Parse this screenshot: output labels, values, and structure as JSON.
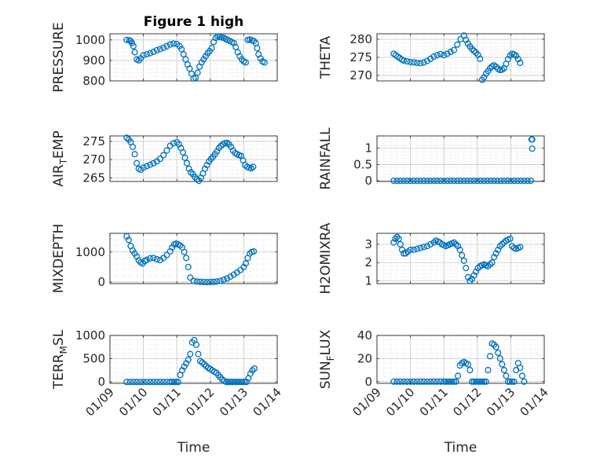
{
  "figure_title": "Figure 1 high",
  "x_axis_label": "Time",
  "marker_color": "#0072BD",
  "chart_data": [
    {
      "type": "scatter",
      "ylabel": "PRESSURE",
      "title": "Figure 1 high",
      "xlim": [
        0,
        5
      ],
      "xticks": [],
      "ylim": [
        800,
        1030
      ],
      "yticks": [
        800,
        900,
        1000
      ],
      "x": [
        0.5,
        0.58,
        0.62,
        0.66,
        0.7,
        0.74,
        0.8,
        0.86,
        0.92,
        1.0,
        1.1,
        1.2,
        1.3,
        1.4,
        1.5,
        1.6,
        1.7,
        1.8,
        1.9,
        2.0,
        2.08,
        2.14,
        2.2,
        2.26,
        2.32,
        2.38,
        2.44,
        2.5,
        2.56,
        2.62,
        2.68,
        2.74,
        2.8,
        2.86,
        2.92,
        2.98,
        3.04,
        3.1,
        3.16,
        3.22,
        3.28,
        3.34,
        3.4,
        3.46,
        3.52,
        3.58,
        3.64,
        3.7,
        3.76,
        3.82,
        3.88,
        3.94,
        4.0,
        4.06,
        4.12,
        4.18,
        4.24,
        4.3,
        4.36,
        4.4,
        4.44,
        4.5,
        4.56,
        4.62
      ],
      "y": [
        1000,
        998,
        995,
        985,
        970,
        940,
        905,
        900,
        910,
        925,
        930,
        935,
        942,
        950,
        955,
        962,
        970,
        978,
        982,
        980,
        970,
        955,
        930,
        905,
        880,
        860,
        835,
        812,
        815,
        840,
        870,
        890,
        905,
        920,
        935,
        945,
        960,
        990,
        1010,
        1018,
        1015,
        1012,
        1010,
        1005,
        1000,
        995,
        990,
        985,
        965,
        940,
        920,
        905,
        895,
        890,
        1000,
        1002,
        998,
        995,
        985,
        960,
        930,
        910,
        895,
        890
      ]
    },
    {
      "type": "scatter",
      "ylabel": "THETA",
      "title": "",
      "xlim": [
        0,
        5
      ],
      "xticks": [],
      "ylim": [
        268.5,
        281.5
      ],
      "yticks": [
        270,
        275,
        280
      ],
      "x": [
        0.5,
        0.56,
        0.62,
        0.68,
        0.74,
        0.8,
        0.9,
        1.0,
        1.1,
        1.2,
        1.3,
        1.4,
        1.5,
        1.6,
        1.7,
        1.8,
        1.9,
        2.0,
        2.1,
        2.2,
        2.3,
        2.4,
        2.5,
        2.6,
        2.66,
        2.72,
        2.78,
        2.84,
        2.9,
        2.96,
        3.02,
        3.08,
        3.14,
        3.2,
        3.26,
        3.32,
        3.38,
        3.44,
        3.5,
        3.56,
        3.62,
        3.68,
        3.74,
        3.8,
        3.86,
        3.92,
        3.98,
        4.04,
        4.1,
        4.16,
        4.22,
        4.28
      ],
      "y": [
        276,
        275.6,
        275.2,
        274.8,
        274.4,
        274.1,
        273.9,
        273.7,
        273.6,
        273.5,
        273.4,
        273.6,
        274.0,
        274.6,
        275.2,
        275.6,
        275.9,
        275.6,
        276.0,
        276.5,
        277.0,
        278.5,
        280.0,
        281.0,
        279.8,
        278.8,
        278.0,
        277.3,
        276.8,
        276.3,
        275.7,
        274.6,
        268.8,
        269.5,
        270.5,
        271.2,
        272.0,
        272.5,
        272.8,
        272.4,
        271.8,
        271.5,
        271.6,
        272.0,
        273.2,
        274.5,
        275.5,
        276.0,
        275.8,
        275.4,
        274.5,
        273.5
      ]
    },
    {
      "type": "scatter",
      "ylabel": "AIR_TEMP",
      "title": "",
      "xlim": [
        0,
        5
      ],
      "xticks": [],
      "ylim": [
        264,
        276.5
      ],
      "yticks": [
        265,
        270,
        275
      ],
      "x": [
        0.5,
        0.56,
        0.62,
        0.68,
        0.74,
        0.8,
        0.86,
        0.92,
        1.0,
        1.1,
        1.2,
        1.3,
        1.4,
        1.5,
        1.6,
        1.7,
        1.8,
        1.9,
        2.0,
        2.06,
        2.12,
        2.18,
        2.24,
        2.3,
        2.36,
        2.42,
        2.48,
        2.54,
        2.6,
        2.66,
        2.72,
        2.78,
        2.84,
        2.9,
        2.96,
        3.02,
        3.08,
        3.14,
        3.2,
        3.26,
        3.32,
        3.38,
        3.44,
        3.5,
        3.56,
        3.62,
        3.68,
        3.74,
        3.8,
        3.86,
        3.92,
        3.98,
        4.04,
        4.1,
        4.16,
        4.22,
        4.28
      ],
      "y": [
        276,
        275.5,
        274.8,
        273.5,
        271.5,
        269.0,
        267.5,
        267.2,
        267.8,
        268.2,
        268.6,
        269.0,
        269.5,
        270.2,
        271.2,
        272.5,
        273.8,
        274.5,
        274.8,
        274.2,
        273.2,
        272.0,
        270.5,
        269.0,
        267.5,
        266.5,
        266.0,
        265.2,
        264.6,
        264.2,
        265.0,
        266.2,
        267.5,
        268.5,
        269.5,
        270.2,
        270.8,
        271.5,
        272.3,
        273.2,
        273.8,
        274.2,
        274.5,
        274.6,
        274.2,
        273.5,
        272.5,
        271.8,
        271.5,
        271.2,
        271.0,
        269.8,
        268.5,
        268.0,
        267.8,
        267.6,
        268.0
      ]
    },
    {
      "type": "scatter",
      "ylabel": "RAINFALL",
      "title": "",
      "xlim": [
        0,
        5
      ],
      "xticks": [],
      "ylim": [
        -0.02,
        1.38
      ],
      "yticks": [
        0,
        0.5,
        1
      ],
      "x": [
        0.5,
        0.6,
        0.7,
        0.8,
        0.9,
        1.0,
        1.1,
        1.2,
        1.3,
        1.4,
        1.5,
        1.6,
        1.7,
        1.8,
        1.9,
        2.0,
        2.1,
        2.2,
        2.3,
        2.4,
        2.5,
        2.6,
        2.7,
        2.8,
        2.9,
        3.0,
        3.1,
        3.2,
        3.3,
        3.4,
        3.5,
        3.6,
        3.7,
        3.8,
        3.9,
        4.0,
        4.1,
        4.2,
        4.3,
        4.4,
        4.5,
        4.6,
        4.62,
        4.64,
        4.64
      ],
      "y": [
        0,
        0,
        0,
        0,
        0,
        0,
        0,
        0,
        0,
        0,
        0,
        0,
        0,
        0,
        0,
        0,
        0,
        0,
        0,
        0,
        0,
        0,
        0,
        0,
        0,
        0,
        0,
        0,
        0,
        0,
        0,
        0,
        0,
        0,
        0,
        0,
        0,
        0,
        0,
        0,
        0,
        0,
        1.27,
        0.99,
        1.27
      ]
    },
    {
      "type": "scatter",
      "ylabel": "MIXDEPTH",
      "title": "",
      "xlim": [
        0,
        5
      ],
      "xticks": [],
      "ylim": [
        -50,
        1620
      ],
      "yticks": [
        0,
        1000
      ],
      "x": [
        0.5,
        0.56,
        0.62,
        0.68,
        0.74,
        0.8,
        0.86,
        0.92,
        0.98,
        1.04,
        1.1,
        1.2,
        1.3,
        1.4,
        1.5,
        1.6,
        1.7,
        1.8,
        1.86,
        1.92,
        1.98,
        2.04,
        2.1,
        2.16,
        2.22,
        2.28,
        2.34,
        2.4,
        2.5,
        2.6,
        2.7,
        2.8,
        2.9,
        3.0,
        3.1,
        3.2,
        3.3,
        3.4,
        3.5,
        3.6,
        3.7,
        3.8,
        3.9,
        4.0,
        4.06,
        4.12,
        4.18,
        4.24,
        4.3
      ],
      "y": [
        1520,
        1400,
        1200,
        1050,
        950,
        850,
        720,
        650,
        620,
        700,
        740,
        790,
        800,
        760,
        730,
        800,
        900,
        1020,
        1150,
        1250,
        1280,
        1250,
        1220,
        1150,
        1000,
        800,
        500,
        150,
        40,
        20,
        10,
        5,
        0,
        5,
        10,
        20,
        40,
        80,
        120,
        180,
        250,
        320,
        400,
        500,
        620,
        800,
        950,
        1000,
        1020
      ]
    },
    {
      "type": "scatter",
      "ylabel": "H2OMIXRA",
      "title": "",
      "xlim": [
        0,
        5
      ],
      "xticks": [],
      "ylim": [
        0.85,
        3.6
      ],
      "yticks": [
        1,
        2,
        3
      ],
      "x": [
        0.5,
        0.55,
        0.6,
        0.65,
        0.7,
        0.75,
        0.8,
        0.86,
        0.92,
        1.0,
        1.1,
        1.2,
        1.3,
        1.4,
        1.5,
        1.6,
        1.7,
        1.76,
        1.82,
        1.88,
        1.94,
        2.0,
        2.06,
        2.12,
        2.18,
        2.24,
        2.3,
        2.36,
        2.42,
        2.48,
        2.54,
        2.6,
        2.66,
        2.72,
        2.78,
        2.84,
        2.9,
        2.96,
        3.02,
        3.08,
        3.14,
        3.2,
        3.26,
        3.32,
        3.38,
        3.44,
        3.5,
        3.56,
        3.62,
        3.68,
        3.74,
        3.8,
        3.86,
        3.92,
        3.98,
        4.04,
        4.1,
        4.16,
        4.22,
        4.28
      ],
      "y": [
        3.1,
        3.3,
        3.4,
        3.3,
        3.0,
        2.7,
        2.5,
        2.5,
        2.6,
        2.7,
        2.7,
        2.75,
        2.8,
        2.85,
        2.9,
        3.0,
        3.1,
        3.2,
        3.15,
        3.1,
        3.0,
        2.95,
        2.9,
        2.95,
        3.0,
        3.05,
        3.1,
        3.0,
        2.9,
        2.7,
        2.4,
        2.1,
        1.7,
        1.2,
        1.0,
        1.1,
        1.3,
        1.5,
        1.7,
        1.8,
        1.85,
        1.9,
        1.85,
        1.8,
        1.9,
        2.0,
        2.3,
        2.5,
        2.7,
        2.9,
        3.0,
        3.1,
        3.2,
        3.25,
        3.3,
        2.9,
        2.8,
        2.75,
        2.8,
        2.85
      ]
    },
    {
      "type": "scatter",
      "ylabel": "TERR_MSL",
      "title": "",
      "xlim": [
        0,
        5
      ],
      "xticks": [
        "01/09",
        "01/10",
        "01/11",
        "01/12",
        "01/13",
        "01/14"
      ],
      "xlabel": "Time",
      "ylim": [
        -30,
        1000
      ],
      "yticks": [
        0,
        500,
        1000
      ],
      "x": [
        0.5,
        0.6,
        0.7,
        0.8,
        0.9,
        1.0,
        1.1,
        1.2,
        1.3,
        1.4,
        1.5,
        1.6,
        1.7,
        1.8,
        1.86,
        1.92,
        1.98,
        2.04,
        2.1,
        2.16,
        2.22,
        2.28,
        2.34,
        2.4,
        2.46,
        2.52,
        2.58,
        2.64,
        2.7,
        2.76,
        2.82,
        2.88,
        2.94,
        3.0,
        3.06,
        3.12,
        3.18,
        3.24,
        3.3,
        3.36,
        3.42,
        3.48,
        3.54,
        3.6,
        3.66,
        3.72,
        3.78,
        3.84,
        3.9,
        3.96,
        4.02,
        4.08,
        4.14,
        4.2,
        4.26,
        4.32
      ],
      "y": [
        0,
        0,
        0,
        0,
        0,
        0,
        0,
        0,
        0,
        0,
        0,
        0,
        0,
        0,
        0,
        0,
        0,
        0,
        150,
        250,
        330,
        400,
        480,
        600,
        850,
        900,
        800,
        600,
        450,
        420,
        380,
        340,
        300,
        280,
        250,
        220,
        200,
        150,
        100,
        50,
        20,
        0,
        0,
        0,
        0,
        0,
        0,
        0,
        0,
        0,
        0,
        0,
        80,
        180,
        250,
        290
      ]
    },
    {
      "type": "scatter",
      "ylabel": "SUN_FLUX",
      "title": "",
      "xlim": [
        0,
        5
      ],
      "xticks": [
        "01/09",
        "01/10",
        "01/11",
        "01/12",
        "01/13",
        "01/14"
      ],
      "xlabel": "Time",
      "ylim": [
        -1.5,
        40
      ],
      "yticks": [
        0,
        20,
        40
      ],
      "x": [
        0.5,
        0.6,
        0.7,
        0.8,
        0.9,
        1.0,
        1.1,
        1.2,
        1.3,
        1.4,
        1.5,
        1.6,
        1.7,
        1.8,
        1.9,
        2.0,
        2.06,
        2.12,
        2.18,
        2.24,
        2.3,
        2.36,
        2.42,
        2.48,
        2.54,
        2.6,
        2.66,
        2.72,
        2.78,
        2.84,
        2.9,
        2.96,
        3.02,
        3.08,
        3.14,
        3.2,
        3.26,
        3.32,
        3.38,
        3.44,
        3.5,
        3.56,
        3.62,
        3.68,
        3.74,
        3.8,
        3.86,
        3.92,
        3.98,
        4.04,
        4.1,
        4.16,
        4.22,
        4.28,
        4.34,
        4.4
      ],
      "y": [
        0,
        0,
        0,
        0,
        0,
        0,
        0,
        0,
        0,
        0,
        0,
        0,
        0,
        0,
        0,
        0,
        0,
        0,
        0,
        0,
        0,
        0,
        5,
        14,
        16,
        17,
        16,
        15,
        10,
        0,
        0,
        0,
        0,
        0,
        0,
        0,
        0,
        10,
        22,
        33,
        32,
        30,
        25,
        20,
        15,
        10,
        5,
        0,
        0,
        0,
        0,
        10,
        16,
        12,
        5,
        0
      ]
    }
  ]
}
